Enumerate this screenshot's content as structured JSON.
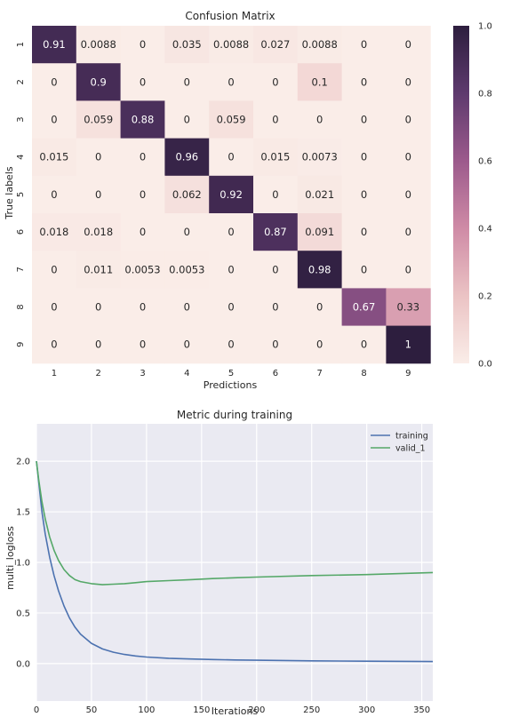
{
  "chart_data": [
    {
      "type": "heatmap",
      "title": "Confusion Matrix",
      "xlabel": "Predictions",
      "ylabel": "True labels",
      "x_categories": [
        "1",
        "2",
        "3",
        "4",
        "5",
        "6",
        "7",
        "8",
        "9"
      ],
      "y_categories": [
        "1",
        "2",
        "3",
        "4",
        "5",
        "6",
        "7",
        "8",
        "9"
      ],
      "values": [
        [
          0.91,
          0.0088,
          0,
          0.035,
          0.0088,
          0.027,
          0.0088,
          0,
          0
        ],
        [
          0,
          0.9,
          0,
          0,
          0,
          0,
          0.1,
          0,
          0
        ],
        [
          0,
          0.059,
          0.88,
          0,
          0.059,
          0,
          0,
          0,
          0
        ],
        [
          0.015,
          0,
          0,
          0.96,
          0,
          0.015,
          0.0073,
          0,
          0
        ],
        [
          0,
          0,
          0,
          0.062,
          0.92,
          0,
          0.021,
          0,
          0
        ],
        [
          0.018,
          0.018,
          0,
          0,
          0,
          0.87,
          0.091,
          0,
          0
        ],
        [
          0,
          0.011,
          0.0053,
          0.0053,
          0,
          0,
          0.98,
          0,
          0
        ],
        [
          0,
          0,
          0,
          0,
          0,
          0,
          0,
          0.67,
          0.33
        ],
        [
          0,
          0,
          0,
          0,
          0,
          0,
          0,
          0,
          1
        ]
      ],
      "colorbar": {
        "range": [
          0.0,
          1.0
        ],
        "ticks": [
          0.0,
          0.2,
          0.4,
          0.6,
          0.8,
          1.0
        ],
        "tick_labels": [
          "0.0",
          "0.2",
          "0.4",
          "0.6",
          "0.8",
          "1.0"
        ]
      },
      "colormap": [
        "#faede8",
        "#ebc3c4",
        "#cf8ba6",
        "#9c5a8c",
        "#5e3a6e",
        "#2d1e3e"
      ]
    },
    {
      "type": "line",
      "title": "Metric during training",
      "xlabel": "Iterations",
      "ylabel": "multi_logloss",
      "xlim": [
        0,
        360
      ],
      "ylim": [
        -0.37,
        2.37
      ],
      "xticks": [
        0,
        50,
        100,
        150,
        200,
        250,
        300,
        350
      ],
      "xtick_labels": [
        "0",
        "50",
        "100",
        "150",
        "200",
        "250",
        "300",
        "350"
      ],
      "yticks": [
        0.0,
        0.5,
        1.0,
        1.5,
        2.0
      ],
      "ytick_labels": [
        "0.0",
        "0.5",
        "1.0",
        "1.5",
        "2.0"
      ],
      "grid": true,
      "legend": "top-right",
      "background": "#eaeaf2",
      "series": [
        {
          "name": "training",
          "color": "#4c72b0",
          "x": [
            0,
            2,
            5,
            8,
            12,
            16,
            20,
            25,
            30,
            35,
            40,
            50,
            60,
            70,
            80,
            90,
            100,
            120,
            140,
            160,
            180,
            200,
            250,
            300,
            360
          ],
          "y": [
            2.0,
            1.8,
            1.5,
            1.28,
            1.05,
            0.87,
            0.72,
            0.57,
            0.45,
            0.36,
            0.29,
            0.2,
            0.145,
            0.112,
            0.09,
            0.075,
            0.065,
            0.052,
            0.045,
            0.04,
            0.036,
            0.033,
            0.027,
            0.023,
            0.02
          ]
        },
        {
          "name": "valid_1",
          "color": "#55a868",
          "x": [
            0,
            2,
            5,
            8,
            12,
            16,
            20,
            25,
            30,
            35,
            40,
            50,
            60,
            70,
            80,
            90,
            100,
            120,
            140,
            160,
            180,
            200,
            250,
            300,
            360
          ],
          "y": [
            2.0,
            1.82,
            1.6,
            1.43,
            1.25,
            1.12,
            1.02,
            0.93,
            0.87,
            0.83,
            0.81,
            0.79,
            0.78,
            0.785,
            0.79,
            0.8,
            0.81,
            0.82,
            0.83,
            0.84,
            0.848,
            0.855,
            0.87,
            0.88,
            0.9
          ]
        }
      ]
    }
  ]
}
